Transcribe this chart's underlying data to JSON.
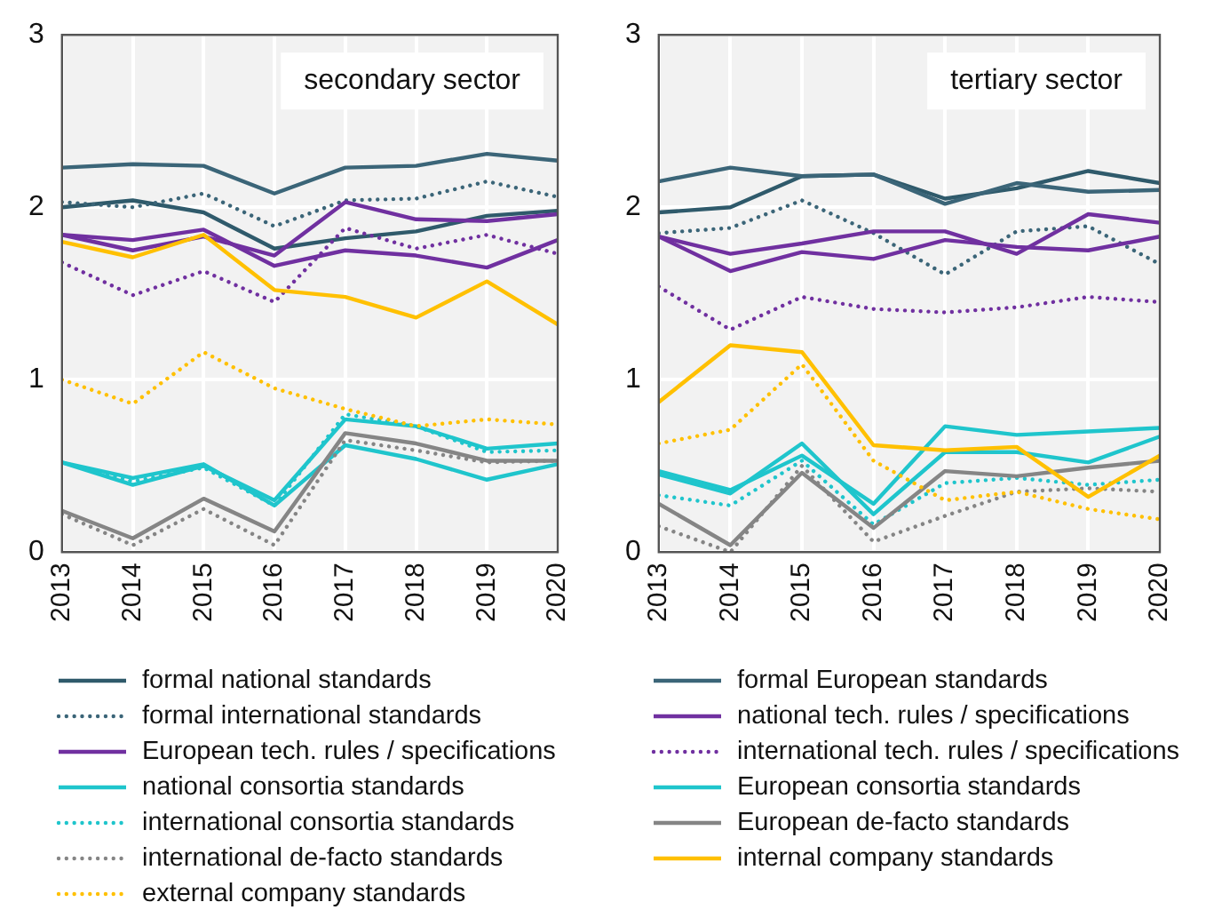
{
  "chart_data": [
    {
      "type": "line",
      "title": "secondary sector",
      "categories": [
        "2013",
        "2014",
        "2015",
        "2016",
        "2017",
        "2018",
        "2019",
        "2020"
      ],
      "ylim": [
        0,
        3
      ],
      "yticks": [
        0,
        1,
        2,
        3
      ],
      "grid": true,
      "legend": "bottom",
      "series": [
        {
          "name": "formal national standards",
          "color": "#2f5a6b",
          "line_style": "solid",
          "values": [
            2.0,
            2.04,
            1.97,
            1.76,
            1.82,
            1.86,
            1.95,
            1.98
          ]
        },
        {
          "name": "formal European standards",
          "color": "#3b6578",
          "line_style": "solid",
          "values": [
            2.23,
            2.25,
            2.24,
            2.08,
            2.23,
            2.24,
            2.31,
            2.27
          ]
        },
        {
          "name": "formal international standards",
          "color": "#3b6578",
          "line_style": "dotted",
          "values": [
            2.03,
            2.0,
            2.08,
            1.89,
            2.04,
            2.05,
            2.15,
            2.06
          ]
        },
        {
          "name": "national tech. rules / specifications",
          "color": "#7030a0",
          "line_style": "solid",
          "values": [
            1.84,
            1.81,
            1.87,
            1.66,
            1.75,
            1.72,
            1.65,
            1.81
          ]
        },
        {
          "name": "European tech. rules / specifications",
          "color": "#7030a0",
          "line_style": "solid",
          "values": [
            1.84,
            1.75,
            1.83,
            1.72,
            2.03,
            1.93,
            1.92,
            1.96
          ]
        },
        {
          "name": "international tech. rules / specifications",
          "color": "#7030a0",
          "line_style": "dotted",
          "values": [
            1.68,
            1.49,
            1.63,
            1.45,
            1.88,
            1.76,
            1.84,
            1.73
          ]
        },
        {
          "name": "national consortia standards",
          "color": "#1fc5cc",
          "line_style": "solid",
          "values": [
            0.52,
            0.43,
            0.51,
            0.27,
            0.62,
            0.54,
            0.42,
            0.51
          ]
        },
        {
          "name": "European consortia standards",
          "color": "#1fc5cc",
          "line_style": "solid",
          "values": [
            0.52,
            0.39,
            0.5,
            0.3,
            0.77,
            0.73,
            0.6,
            0.63
          ]
        },
        {
          "name": "international consortia standards",
          "color": "#1fc5cc",
          "line_style": "dotted",
          "values": [
            0.52,
            0.41,
            0.49,
            0.27,
            0.8,
            0.73,
            0.58,
            0.59
          ]
        },
        {
          "name": "European de-facto standards",
          "color": "#858585",
          "line_style": "solid",
          "values": [
            0.24,
            0.08,
            0.31,
            0.12,
            0.69,
            0.63,
            0.53,
            0.53
          ]
        },
        {
          "name": "international de-facto standards",
          "color": "#858585",
          "line_style": "dotted",
          "values": [
            0.22,
            0.04,
            0.25,
            0.04,
            0.65,
            0.59,
            0.52,
            0.53
          ]
        },
        {
          "name": "internal company standards",
          "color": "#ffc000",
          "line_style": "solid",
          "values": [
            1.8,
            1.71,
            1.84,
            1.52,
            1.48,
            1.36,
            1.57,
            1.32
          ]
        },
        {
          "name": "external company standards",
          "color": "#ffc000",
          "line_style": "dotted",
          "values": [
            1.0,
            0.86,
            1.16,
            0.95,
            0.83,
            0.73,
            0.77,
            0.74
          ]
        }
      ]
    },
    {
      "type": "line",
      "title": "tertiary sector",
      "categories": [
        "2013",
        "2014",
        "2015",
        "2016",
        "2017",
        "2018",
        "2019",
        "2020"
      ],
      "ylim": [
        0,
        3
      ],
      "yticks": [
        0,
        1,
        2,
        3
      ],
      "grid": true,
      "series": [
        {
          "color": "#2f5a6b",
          "line_style": "solid",
          "values": [
            1.97,
            2.0,
            2.18,
            2.19,
            2.05,
            2.11,
            2.21,
            2.14
          ]
        },
        {
          "color": "#3b6578",
          "line_style": "solid",
          "values": [
            2.15,
            2.23,
            2.18,
            2.19,
            2.02,
            2.14,
            2.09,
            2.1
          ]
        },
        {
          "color": "#3b6578",
          "line_style": "dotted",
          "values": [
            1.85,
            1.88,
            2.04,
            1.85,
            1.61,
            1.86,
            1.89,
            1.67
          ]
        },
        {
          "color": "#7030a0",
          "line_style": "solid",
          "values": [
            1.83,
            1.73,
            1.79,
            1.86,
            1.86,
            1.73,
            1.96,
            1.91
          ]
        },
        {
          "color": "#7030a0",
          "line_style": "solid",
          "values": [
            1.83,
            1.63,
            1.74,
            1.7,
            1.81,
            1.77,
            1.75,
            1.83
          ]
        },
        {
          "color": "#7030a0",
          "line_style": "dotted",
          "values": [
            1.54,
            1.29,
            1.48,
            1.41,
            1.39,
            1.42,
            1.48,
            1.45
          ]
        },
        {
          "color": "#1fc5cc",
          "line_style": "solid",
          "values": [
            0.47,
            0.36,
            0.56,
            0.28,
            0.73,
            0.68,
            0.7,
            0.72
          ]
        },
        {
          "color": "#1fc5cc",
          "line_style": "solid",
          "values": [
            0.45,
            0.34,
            0.63,
            0.22,
            0.58,
            0.58,
            0.52,
            0.67
          ]
        },
        {
          "color": "#1fc5cc",
          "line_style": "dotted",
          "values": [
            0.33,
            0.27,
            0.53,
            0.16,
            0.4,
            0.43,
            0.39,
            0.42
          ]
        },
        {
          "color": "#858585",
          "line_style": "solid",
          "values": [
            0.28,
            0.04,
            0.46,
            0.14,
            0.47,
            0.44,
            0.49,
            0.53
          ]
        },
        {
          "color": "#858585",
          "line_style": "dotted",
          "values": [
            0.15,
            0,
            0.5,
            0.06,
            0.21,
            0.35,
            0.37,
            0.35
          ]
        },
        {
          "color": "#ffc000",
          "line_style": "solid",
          "values": [
            0.87,
            1.2,
            1.16,
            0.62,
            0.59,
            0.61,
            0.32,
            0.56
          ]
        },
        {
          "color": "#ffc000",
          "line_style": "dotted",
          "values": [
            0.63,
            0.71,
            1.09,
            0.53,
            0.3,
            0.35,
            0.25,
            0.19
          ]
        }
      ]
    }
  ]
}
